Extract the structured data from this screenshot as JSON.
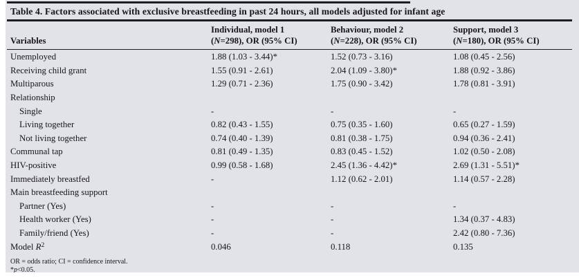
{
  "table": {
    "title": "Table 4. Factors associated with exclusive breastfeeding in past 24 hours, all models adjusted for infant age",
    "columns": {
      "variables_label": "Variables",
      "models": [
        {
          "line1": "Individual, model 1",
          "n_open": "(",
          "n_italic": "N",
          "n_rest": "=298), OR (95% CI)"
        },
        {
          "line1": "Behaviour, model 2",
          "n_open": "(",
          "n_italic": "N",
          "n_rest": "=228), OR (95% CI)"
        },
        {
          "line1": "Support, model 3",
          "n_open": "(",
          "n_italic": "N",
          "n_rest": "=180), OR (95% CI)"
        }
      ]
    },
    "rows": [
      {
        "label": "Unemployed",
        "values": [
          "1.88 (1.03 - 3.44)*",
          "1.52 (0.73 - 3.16)",
          "1.08 (0.45 - 2.56)"
        ]
      },
      {
        "label": "Receiving child grant",
        "values": [
          "1.55 (0.91 - 2.61)",
          "2.04 (1.09 - 3.80)*",
          "1.88 (0.92 - 3.86)"
        ]
      },
      {
        "label": "Multiparous",
        "values": [
          "1.29 (0.71 - 2.36)",
          "1.75 (0.90 - 3.42)",
          "1.78 (0.81 - 3.91)"
        ]
      },
      {
        "label": "Relationship",
        "section": true,
        "values": [
          "",
          "",
          ""
        ]
      },
      {
        "label": "Single",
        "indent": true,
        "values": [
          "-",
          "-",
          "-"
        ]
      },
      {
        "label": "Living together",
        "indent": true,
        "values": [
          "0.82 (0.43 - 1.55)",
          "0.75 (0.35 - 1.60)",
          "0.65 (0.27 - 1.59)"
        ]
      },
      {
        "label": "Not living together",
        "indent": true,
        "values": [
          "0.74 (0.40 - 1.39)",
          "0.81 (0.38 - 1.75)",
          "0.94 (0.36 - 2.41)"
        ]
      },
      {
        "label": "Communal tap",
        "values": [
          "0.81 (0.49 - 1.35)",
          "0.83 (0.45 - 1.52)",
          "1.02 (0.50 - 2.08)"
        ]
      },
      {
        "label": "HIV-positive",
        "values": [
          "0.99 (0.58 - 1.68)",
          "2.45 (1.36 - 4.42)*",
          "2.69 (1.31 - 5.51)*"
        ]
      },
      {
        "label": "Immediately breastfed",
        "values": [
          "-",
          "1.12 (0.62 - 2.01)",
          "1.14 (0.57 - 2.28)"
        ]
      },
      {
        "label": "Main breastfeeding support",
        "section": true,
        "values": [
          "",
          "",
          ""
        ]
      },
      {
        "label": "Partner (Yes)",
        "indent": true,
        "values": [
          "-",
          "-",
          "-"
        ]
      },
      {
        "label": "Health worker (Yes)",
        "indent": true,
        "values": [
          "-",
          "-",
          "1.34 (0.37 - 4.83)"
        ]
      },
      {
        "label": "Family/friend (Yes)",
        "indent": true,
        "values": [
          "-",
          "-",
          "2.42 (0.80 - 7.36)"
        ]
      },
      {
        "label": "Model R2",
        "label_parts": {
          "pre": "Model ",
          "italic": "R",
          "sup": "2"
        },
        "values": [
          "0.046",
          "0.118",
          "0.135"
        ]
      }
    ],
    "footnotes": {
      "line1": "OR = odds ratio; CI = confidence interval.",
      "line2_star": "*",
      "line2_italic": "p",
      "line2_rest": "<0.05."
    }
  },
  "colors": {
    "panel_bg": "#e2e3e9",
    "rule": "#1d1d21",
    "text": "#15151a"
  }
}
